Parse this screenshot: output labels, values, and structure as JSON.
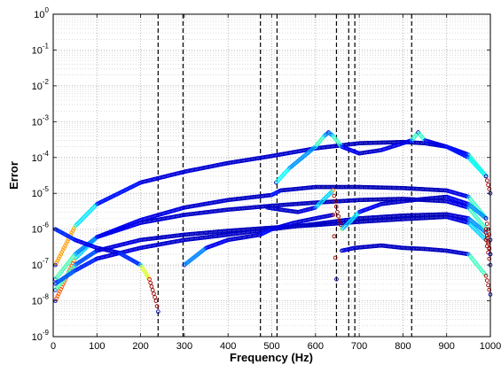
{
  "chart_data": {
    "type": "scatter",
    "title": "",
    "xlabel": "Frequency (Hz)",
    "ylabel": "Error",
    "xlim": [
      0,
      1000
    ],
    "ylim": [
      1e-09,
      1
    ],
    "yscale": "log",
    "grid": true,
    "x_ticks": [
      0,
      100,
      200,
      300,
      400,
      500,
      600,
      700,
      800,
      900,
      1000
    ],
    "x_tick_labels": [
      "0",
      "100",
      "200",
      "300",
      "400",
      "500",
      "600",
      "700",
      "800",
      "900",
      "1000"
    ],
    "y_ticks": [
      1e-09,
      1e-08,
      1e-07,
      1e-06,
      1e-05,
      0.0001,
      0.001,
      0.01,
      0.1,
      1
    ],
    "y_tick_labels": [
      {
        "base": "10",
        "exp": "-9"
      },
      {
        "base": "10",
        "exp": "-8"
      },
      {
        "base": "10",
        "exp": "-7"
      },
      {
        "base": "10",
        "exp": "-6"
      },
      {
        "base": "10",
        "exp": "-5"
      },
      {
        "base": "10",
        "exp": "-4"
      },
      {
        "base": "10",
        "exp": "-3"
      },
      {
        "base": "10",
        "exp": "-2"
      },
      {
        "base": "10",
        "exp": "-1"
      },
      {
        "base": "10",
        "exp": "0"
      }
    ],
    "vertical_dashed_lines": [
      240,
      297,
      474,
      512,
      648,
      676,
      690,
      820
    ],
    "colormap": [
      "#00008f",
      "#0000ff",
      "#00ffff",
      "#ffff00",
      "#ff0000",
      "#800000"
    ],
    "series": [
      {
        "marker": "circle",
        "points": [
          [
            5,
            1e-07
          ],
          [
            50,
            1.2e-06
          ],
          [
            100,
            5e-06
          ],
          [
            200,
            2e-05
          ],
          [
            300,
            4e-05
          ],
          [
            400,
            7e-05
          ],
          [
            500,
            0.00011
          ],
          [
            600,
            0.00018
          ],
          [
            700,
            0.00025
          ],
          [
            800,
            0.00027
          ],
          [
            850,
            0.00025
          ],
          [
            900,
            0.0002
          ],
          [
            950,
            0.00012
          ],
          [
            990,
            3e-05
          ],
          [
            1000,
            1e-05
          ]
        ]
      },
      {
        "marker": "circle",
        "points": [
          [
            5,
            1e-08
          ],
          [
            50,
            1.5e-07
          ],
          [
            100,
            6e-07
          ],
          [
            200,
            1.8e-06
          ],
          [
            300,
            4e-06
          ],
          [
            400,
            6.5e-06
          ],
          [
            500,
            9e-06
          ],
          [
            520,
            1.2e-05
          ],
          [
            600,
            1.5e-05
          ],
          [
            700,
            1.5e-05
          ],
          [
            800,
            1.4e-05
          ],
          [
            900,
            1.2e-05
          ],
          [
            950,
            8e-06
          ],
          [
            990,
            2e-06
          ],
          [
            1000,
            5e-07
          ]
        ]
      },
      {
        "marker": "circle",
        "points": [
          [
            5,
            2e-08
          ],
          [
            50,
            1e-07
          ],
          [
            100,
            2.5e-07
          ],
          [
            200,
            5e-07
          ],
          [
            300,
            7e-07
          ],
          [
            400,
            9e-07
          ],
          [
            500,
            1.1e-06
          ],
          [
            600,
            1.3e-06
          ],
          [
            700,
            1.6e-06
          ],
          [
            800,
            1.9e-06
          ],
          [
            900,
            2.2e-06
          ],
          [
            950,
            1.5e-06
          ],
          [
            990,
            5e-07
          ],
          [
            1000,
            1e-07
          ]
        ]
      },
      {
        "marker": "circle",
        "points": [
          [
            5,
            3e-08
          ],
          [
            50,
            7e-08
          ],
          [
            100,
            1.5e-07
          ],
          [
            200,
            3e-07
          ],
          [
            300,
            5e-07
          ],
          [
            400,
            7e-07
          ],
          [
            500,
            1e-06
          ],
          [
            600,
            1.4e-06
          ],
          [
            700,
            2e-06
          ],
          [
            800,
            2.4e-06
          ],
          [
            900,
            2.6e-06
          ],
          [
            950,
            2e-06
          ],
          [
            990,
            8e-07
          ],
          [
            1000,
            2e-07
          ]
        ]
      },
      {
        "marker": "circle",
        "points": [
          [
            5,
            4e-08
          ],
          [
            50,
            2e-07
          ],
          [
            100,
            6e-07
          ],
          [
            200,
            1.5e-06
          ],
          [
            300,
            2.5e-06
          ],
          [
            400,
            3.5e-06
          ],
          [
            500,
            4.5e-06
          ],
          [
            600,
            5.5e-06
          ],
          [
            700,
            6.5e-06
          ],
          [
            800,
            7e-06
          ],
          [
            900,
            6e-06
          ],
          [
            950,
            4e-06
          ],
          [
            990,
            1e-06
          ],
          [
            1000,
            2e-07
          ]
        ]
      },
      {
        "marker": "circle",
        "points": [
          [
            5,
            1e-06
          ],
          [
            50,
            5e-07
          ],
          [
            100,
            3e-07
          ],
          [
            150,
            2.2e-07
          ],
          [
            200,
            1e-07
          ],
          [
            220,
            4e-08
          ],
          [
            235,
            1e-08
          ],
          [
            240,
            5e-09
          ]
        ]
      },
      {
        "marker": "circle",
        "points": [
          [
            300,
            1e-07
          ],
          [
            350,
            3e-07
          ],
          [
            400,
            5e-07
          ],
          [
            474,
            7e-07
          ],
          [
            500,
            1e-06
          ],
          [
            550,
            1.5e-06
          ],
          [
            600,
            2e-06
          ],
          [
            640,
            2.5e-06
          ],
          [
            648,
            4e-08
          ]
        ]
      },
      {
        "marker": "circle",
        "points": [
          [
            510,
            2e-05
          ],
          [
            540,
            5e-05
          ],
          [
            570,
            0.0001
          ],
          [
            600,
            0.0002
          ],
          [
            620,
            0.0004
          ],
          [
            630,
            0.0005
          ],
          [
            640,
            0.0004
          ],
          [
            660,
            0.0002
          ],
          [
            700,
            0.00013
          ],
          [
            750,
            0.00016
          ],
          [
            800,
            0.00025
          ],
          [
            820,
            0.0003
          ],
          [
            835,
            0.0005
          ],
          [
            850,
            0.0003
          ],
          [
            900,
            0.0002
          ],
          [
            950,
            0.0001
          ],
          [
            990,
            3e-05
          ]
        ]
      },
      {
        "marker": "circle",
        "points": [
          [
            660,
            2.5e-07
          ],
          [
            690,
            3e-07
          ],
          [
            750,
            3.5e-07
          ],
          [
            800,
            3e-07
          ],
          [
            850,
            2.8e-07
          ],
          [
            900,
            2.5e-07
          ],
          [
            950,
            2e-07
          ],
          [
            990,
            5e-08
          ],
          [
            1000,
            1.5e-08
          ]
        ]
      },
      {
        "marker": "circle",
        "points": [
          [
            490,
            4e-06
          ],
          [
            520,
            3.5e-06
          ],
          [
            560,
            3e-06
          ],
          [
            600,
            4e-06
          ],
          [
            640,
            1.2e-05
          ],
          [
            650,
            3e-06
          ],
          [
            660,
            1e-06
          ],
          [
            676,
            1.5e-06
          ],
          [
            700,
            3e-06
          ],
          [
            750,
            5e-06
          ],
          [
            800,
            6e-06
          ],
          [
            850,
            7e-06
          ],
          [
            900,
            8e-06
          ],
          [
            950,
            5e-06
          ],
          [
            990,
            2e-06
          ]
        ]
      }
    ]
  }
}
